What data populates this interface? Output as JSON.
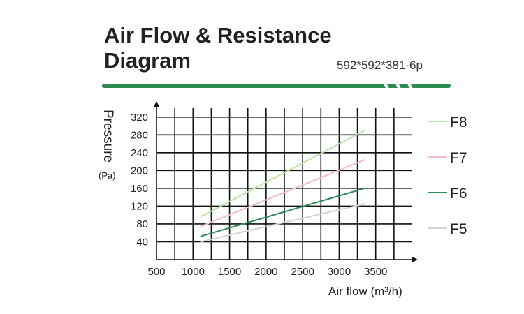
{
  "chart_data": {
    "type": "line",
    "title": "Air Flow & Resistance Diagram",
    "subtitle": "592*592*381-6p",
    "xlabel": "Air flow (m³/h)",
    "ylabel": "Pressure",
    "ylabel_unit": "(Pa)",
    "x_ticks": [
      500,
      1000,
      1500,
      2000,
      2500,
      3000,
      3500
    ],
    "y_ticks": [
      40,
      80,
      120,
      160,
      200,
      240,
      280,
      320
    ],
    "xlim": [
      500,
      4000
    ],
    "ylim": [
      0,
      340
    ],
    "grid": true,
    "legend_position": "right",
    "series": [
      {
        "name": "F8",
        "color": "#b9e3a8",
        "x": [
          1100,
          3350
        ],
        "values": [
          96,
          290
        ]
      },
      {
        "name": "F7",
        "color": "#f2bcc8",
        "x": [
          1100,
          3350
        ],
        "values": [
          74,
          224
        ]
      },
      {
        "name": "F6",
        "color": "#2e8b57",
        "x": [
          1100,
          3350
        ],
        "values": [
          52,
          160
        ]
      },
      {
        "name": "F5",
        "color": "#d4d4d8",
        "x": [
          1100,
          3350
        ],
        "values": [
          40,
          125
        ]
      }
    ]
  },
  "banner_color": "#2e8b4e"
}
